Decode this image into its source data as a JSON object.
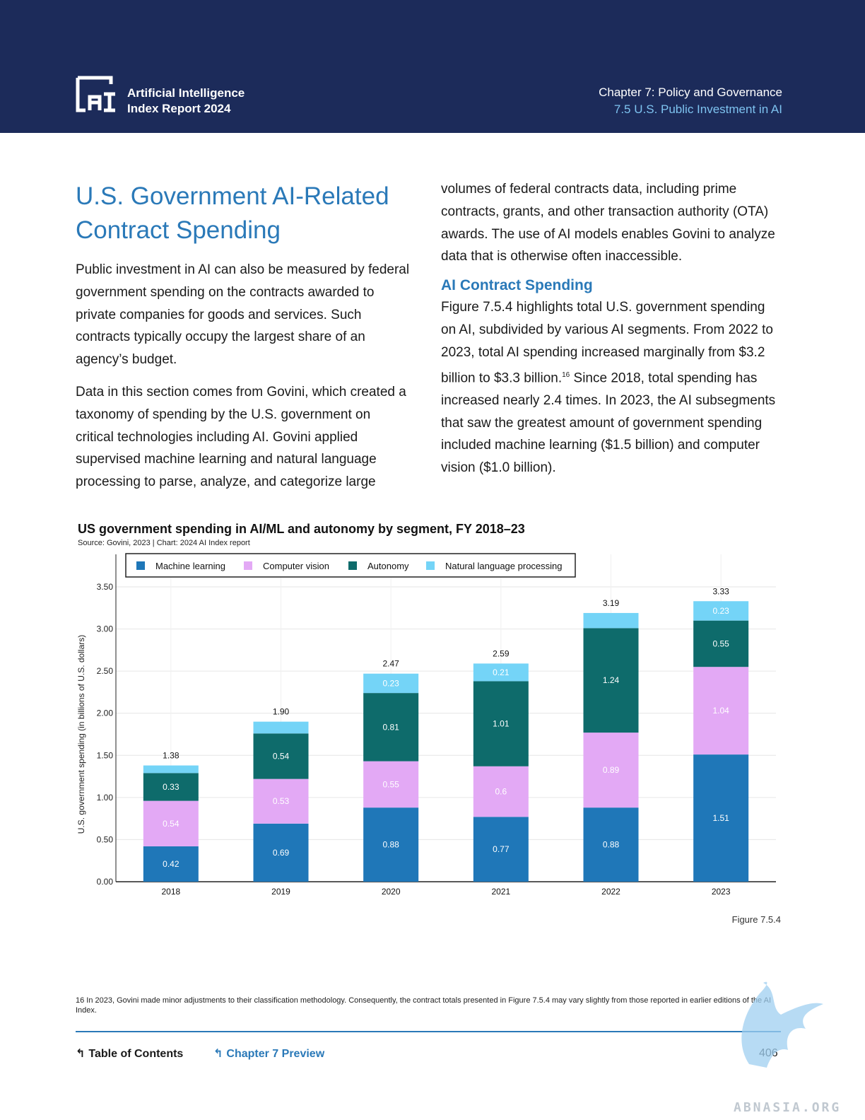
{
  "header": {
    "logo_line1": "Artificial Intelligence",
    "logo_line2": "Index Report 2024",
    "chapter_title": "Chapter 7: Policy and Governance",
    "section_title": "7.5 U.S. Public Investment in AI"
  },
  "left_column": {
    "heading": "U.S. Government AI-Related Contract Spending",
    "para1": "Public investment in AI can also be measured by federal government spending on the contracts awarded to private companies for goods and services. Such contracts typically occupy the largest share of an agency’s budget.",
    "para2": "Data in this section comes from Govini, which created a taxonomy of spending by the U.S. government on critical technologies including AI. Govini applied supervised machine learning and natural language processing to parse, analyze, and categorize large"
  },
  "right_column": {
    "para1": "volumes of federal contracts data, including prime contracts, grants, and other transaction authority (OTA) awards. The use of AI models enables Govini to analyze data that is otherwise often inaccessible.",
    "subheading": "AI Contract Spending",
    "para2_before": "Figure 7.5.4 highlights total U.S. government spending on AI, subdivided by various AI segments. From 2022 to 2023, total AI spending increased marginally from $3.2 billion to $3.3 billion.",
    "footnote_ref": "16",
    "para2_after": " Since 2018, total spending has increased nearly 2.4 times. In 2023, the AI subsegments that saw the greatest amount of government spending included machine learning ($1.5 billion) and computer vision ($1.0 billion)."
  },
  "chart_data": {
    "type": "bar",
    "stacked": true,
    "title": "US government spending in AI/ML and autonomy by segment, FY 2018–23",
    "source": "Source: Govini, 2023 | Chart: 2024 AI Index report",
    "ylabel": "U.S. government spending (in billions of U.S. dollars)",
    "xlabel": "",
    "ylim": [
      0,
      3.5
    ],
    "yticks": [
      "0.00",
      "0.50",
      "1.00",
      "1.50",
      "2.00",
      "2.50",
      "3.00",
      "3.50"
    ],
    "categories": [
      "2018",
      "2019",
      "2020",
      "2021",
      "2022",
      "2023"
    ],
    "series": [
      {
        "name": "Machine learning",
        "color": "#1f77b8",
        "values": [
          0.42,
          0.69,
          0.88,
          0.77,
          0.88,
          1.51
        ],
        "labels": [
          "0.42",
          "0.69",
          "0.88",
          "0.77",
          "0.88",
          "1.51"
        ]
      },
      {
        "name": "Computer vision",
        "color": "#e3a9f5",
        "values": [
          0.54,
          0.53,
          0.55,
          0.6,
          0.89,
          1.04
        ],
        "labels": [
          "0.54",
          "0.53",
          "0.55",
          "0.6",
          "0.89",
          "1.04"
        ]
      },
      {
        "name": "Autonomy",
        "color": "#0e6b6b",
        "values": [
          0.33,
          0.54,
          0.81,
          1.01,
          1.24,
          0.55
        ],
        "labels": [
          "0.33",
          "0.54",
          "0.81",
          "1.01",
          "1.24",
          "0.55"
        ]
      },
      {
        "name": "Natural language processing",
        "color": "#74d4f7",
        "values": [
          0.09,
          0.14,
          0.23,
          0.21,
          0.18,
          0.23
        ],
        "labels": [
          "",
          "",
          "0.23",
          "0.21",
          "",
          "0.23"
        ]
      }
    ],
    "totals": [
      "1.38",
      "1.90",
      "2.47",
      "2.59",
      "3.19",
      "3.33"
    ],
    "legend_position": "top-left",
    "grid": true
  },
  "figure_label": "Figure 7.5.4",
  "footnote": "16 In 2023, Govini made minor adjustments to their classification methodology. Consequently, the contract totals presented in Figure 7.5.4 may vary slightly from those reported in earlier editions of the AI Index.",
  "footer": {
    "toc_label": "Table of Contents",
    "chapter_preview_label": "Chapter 7 Preview",
    "page_number": "406"
  },
  "watermark_text": "ABNASIA.ORG",
  "colors": {
    "header_bg": "#1c2b5a",
    "accent": "#2a79b8",
    "section_light": "#7ec3f0"
  }
}
